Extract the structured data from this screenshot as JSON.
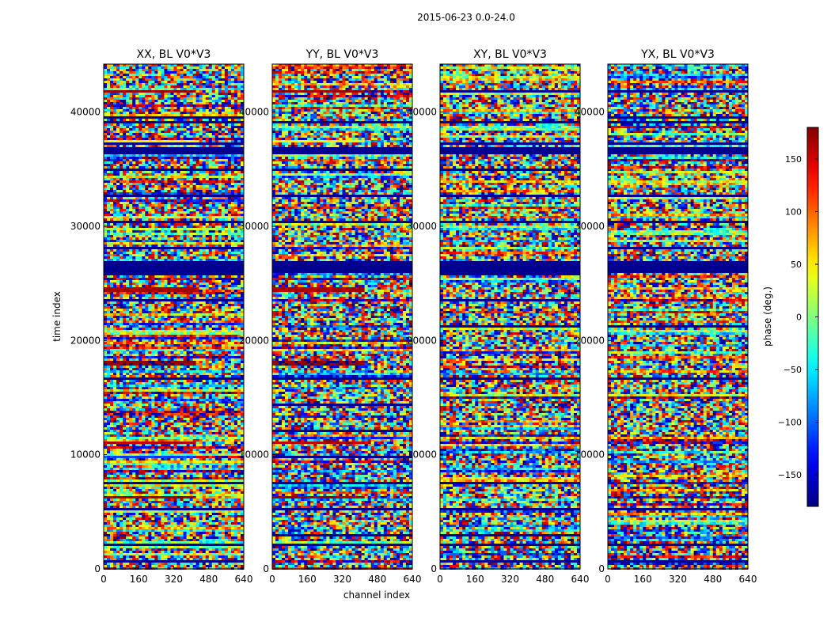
{
  "chart_data": {
    "type": "heatmap",
    "suptitle": "2015-06-23 0.0-24.0",
    "xlabel": "channel index",
    "ylabel": "time index",
    "x_range": [
      0,
      640
    ],
    "y_range": [
      0,
      44200
    ],
    "x_ticks": [
      0,
      160,
      320,
      480,
      640
    ],
    "y_ticks": [
      0,
      10000,
      20000,
      30000,
      40000
    ],
    "panels": [
      {
        "title": "XX, BL V0*V3"
      },
      {
        "title": "YY, BL V0*V3"
      },
      {
        "title": "XY, BL V0*V3"
      },
      {
        "title": "YX, BL V0*V3"
      }
    ],
    "colorbar": {
      "label": "phase (deg.)",
      "range": [
        -180,
        180
      ],
      "ticks": [
        -150,
        -100,
        -50,
        0,
        50,
        100,
        150
      ],
      "tick_labels": [
        "−150",
        "−100",
        "−50",
        "0",
        "50",
        "100",
        "150"
      ],
      "colormap": "jet"
    },
    "flagged_bands": [
      [
        2100,
        2300
      ],
      [
        5200,
        5400
      ],
      [
        26000,
        27000
      ],
      [
        30400,
        30500
      ],
      [
        36500,
        37000
      ],
      [
        39100,
        39300
      ]
    ],
    "strong_bands": [
      {
        "range": [
          6200,
          6500
        ],
        "value": 170
      },
      {
        "range": [
          9800,
          10000
        ],
        "value": -110
      },
      {
        "range": [
          11000,
          11200
        ],
        "value": 160
      },
      {
        "range": [
          17900,
          18300
        ],
        "value": 175
      },
      {
        "range": [
          24400,
          24700
        ],
        "value": 165
      },
      {
        "range": [
          37400,
          37600
        ],
        "value": 45
      },
      {
        "range": [
          41800,
          42000
        ],
        "value": 170
      }
    ]
  }
}
